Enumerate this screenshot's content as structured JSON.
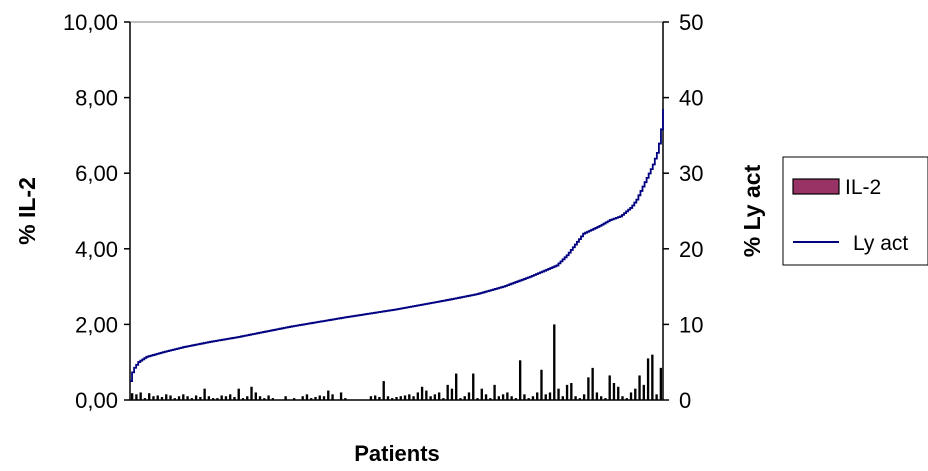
{
  "chart_data": {
    "type": "bar+line",
    "title": "",
    "xlabel": "Patients",
    "ylabel_left": "% IL-2",
    "ylabel_right": "% Ly act",
    "ylim_left": [
      0,
      10
    ],
    "ylim_right": [
      0,
      50
    ],
    "left_ticks": [
      "0,00",
      "2,00",
      "4,00",
      "6,00",
      "8,00",
      "10,00"
    ],
    "right_ticks": [
      "0",
      "10",
      "20",
      "30",
      "40",
      "50"
    ],
    "grid": false,
    "legend_position": "right",
    "colors": {
      "il2_bar": "#000000",
      "il2_legend_fill": "#993366",
      "ly_line": "#000080"
    },
    "legend": [
      {
        "label": "IL-2",
        "kind": "bar"
      },
      {
        "label": "Ly act",
        "kind": "line"
      }
    ],
    "series": [
      {
        "name": "IL-2",
        "axis": "left",
        "kind": "bar",
        "values": [
          0.18,
          0.15,
          0.2,
          0.05,
          0.18,
          0.1,
          0.12,
          0.08,
          0.15,
          0.12,
          0.05,
          0.1,
          0.15,
          0.1,
          0.05,
          0.12,
          0.08,
          0.3,
          0.1,
          0.05,
          0.05,
          0.12,
          0.1,
          0.15,
          0.08,
          0.3,
          0.05,
          0.1,
          0.35,
          0.2,
          0.1,
          0.05,
          0.12,
          0.05,
          0.0,
          0.0,
          0.1,
          0.0,
          0.05,
          0.0,
          0.1,
          0.15,
          0.05,
          0.08,
          0.12,
          0.1,
          0.25,
          0.15,
          0.0,
          0.2,
          0.05,
          0.0,
          0.0,
          0.0,
          0.0,
          0.0,
          0.1,
          0.12,
          0.08,
          0.5,
          0.1,
          0.05,
          0.08,
          0.1,
          0.12,
          0.15,
          0.1,
          0.2,
          0.35,
          0.25,
          0.1,
          0.15,
          0.2,
          0.05,
          0.4,
          0.3,
          0.7,
          0.05,
          0.1,
          0.2,
          0.7,
          0.05,
          0.3,
          0.15,
          0.05,
          0.4,
          0.1,
          0.15,
          0.2,
          0.1,
          0.05,
          1.05,
          0.15,
          0.05,
          0.1,
          0.2,
          0.8,
          0.15,
          0.2,
          2.0,
          0.3,
          0.1,
          0.4,
          0.45,
          0.1,
          0.05,
          0.15,
          0.6,
          0.85,
          0.2,
          0.1,
          0.05,
          0.65,
          0.45,
          0.35,
          0.1,
          0.05,
          0.2,
          0.3,
          0.65,
          0.4,
          1.1,
          1.2,
          0.15,
          0.85
        ]
      },
      {
        "name": "Ly act",
        "axis": "right",
        "kind": "line",
        "x_fraction": [
          0.0,
          0.005,
          0.015,
          0.03,
          0.06,
          0.1,
          0.15,
          0.2,
          0.3,
          0.4,
          0.5,
          0.6,
          0.65,
          0.7,
          0.75,
          0.8,
          0.82,
          0.85,
          0.88,
          0.9,
          0.92,
          0.94,
          0.95,
          0.96,
          0.97,
          0.98,
          0.99,
          0.995,
          1.0
        ],
        "values": [
          2.5,
          4.0,
          5.0,
          5.7,
          6.3,
          7.0,
          7.7,
          8.3,
          9.7,
          10.9,
          12.0,
          13.3,
          14.0,
          15.0,
          16.3,
          17.8,
          19.2,
          22.0,
          23.0,
          23.8,
          24.3,
          25.5,
          26.5,
          28.0,
          29.5,
          31.0,
          33.0,
          35.0,
          38.5
        ]
      }
    ]
  }
}
